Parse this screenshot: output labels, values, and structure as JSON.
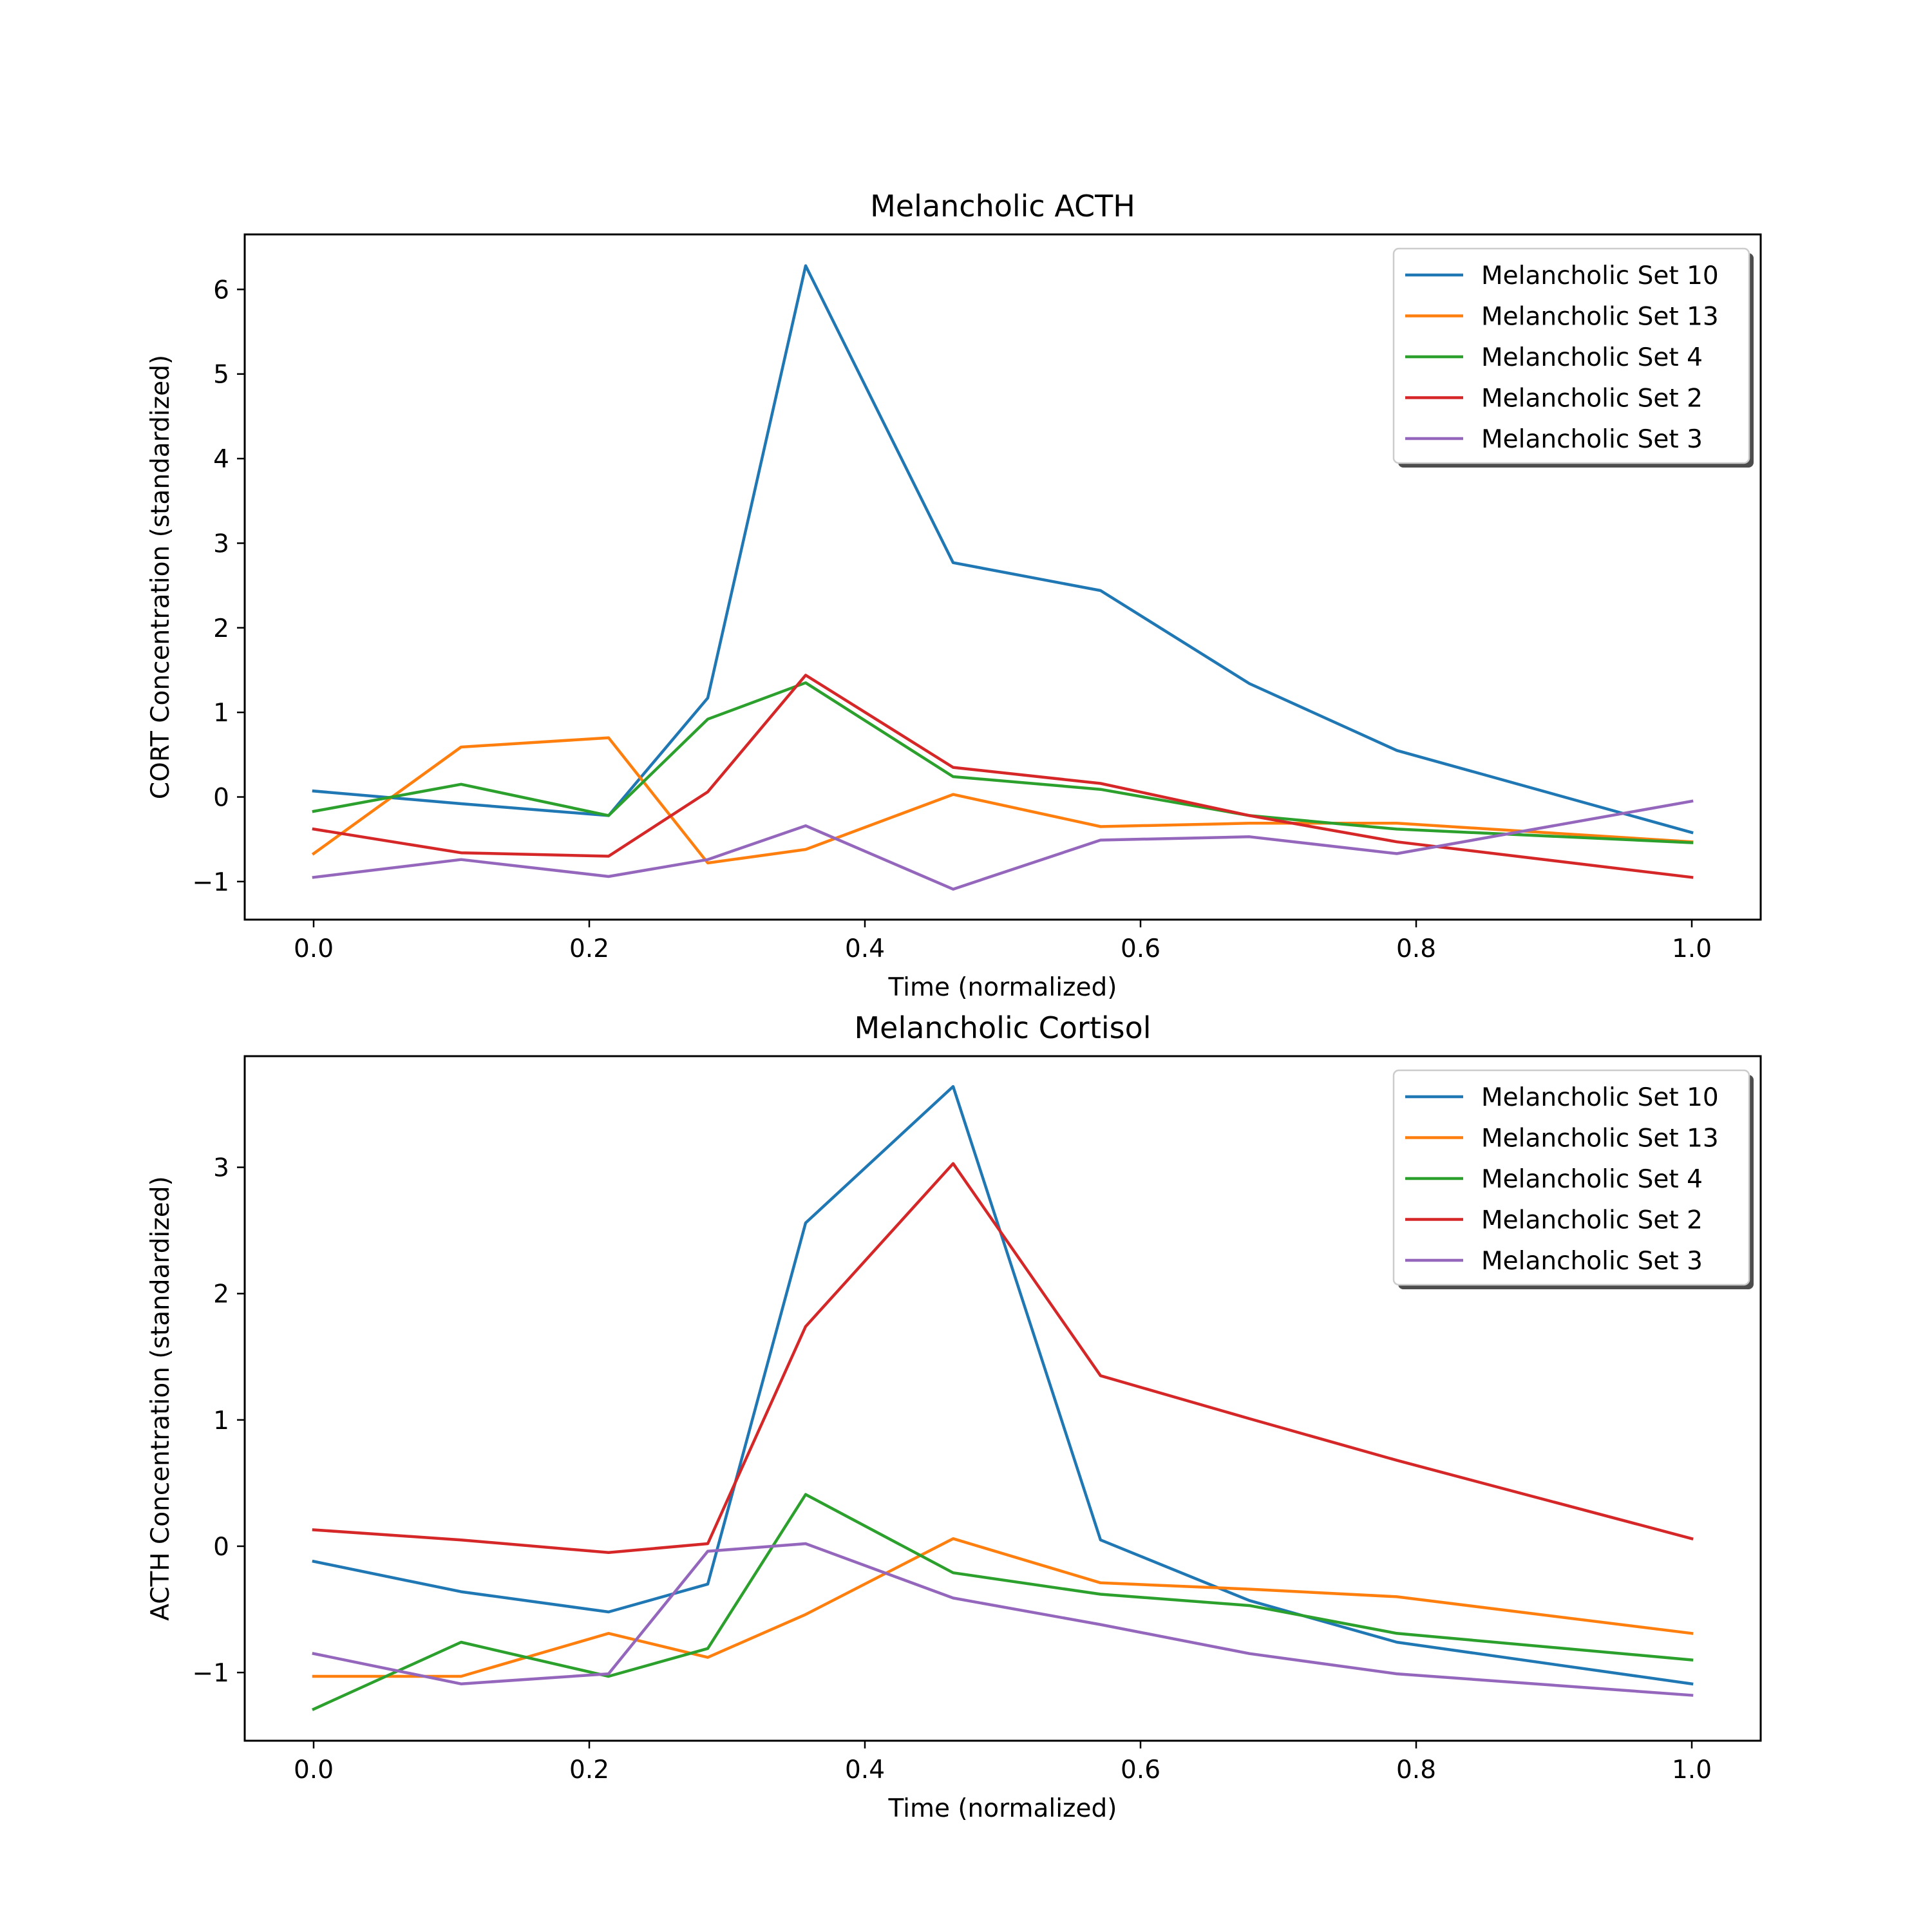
{
  "chart_data": [
    {
      "type": "line",
      "title": "Melancholic ACTH",
      "xlabel": "Time (normalized)",
      "ylabel": "CORT Concentration (standardized)",
      "xlim": [
        -0.05,
        1.05
      ],
      "ylim": [
        -1.45,
        6.65
      ],
      "xticks": [
        0.0,
        0.2,
        0.4,
        0.6,
        0.8,
        1.0
      ],
      "xtick_labels": [
        "0.0",
        "0.2",
        "0.4",
        "0.6",
        "0.8",
        "1.0"
      ],
      "yticks": [
        -1,
        0,
        1,
        2,
        3,
        4,
        5,
        6
      ],
      "ytick_labels": [
        "−1",
        "0",
        "1",
        "2",
        "3",
        "4",
        "5",
        "6"
      ],
      "grid": false,
      "legend_position": "top-right",
      "x": [
        0.0,
        0.107,
        0.214,
        0.286,
        0.357,
        0.464,
        0.571,
        0.679,
        0.786,
        1.0
      ],
      "series": [
        {
          "name": "Melancholic Set 10",
          "color": "#1f77b4",
          "values": [
            0.07,
            -0.08,
            -0.22,
            1.17,
            6.28,
            2.77,
            2.44,
            1.34,
            0.55,
            -0.42
          ]
        },
        {
          "name": "Melancholic Set 13",
          "color": "#ff7f0e",
          "values": [
            -0.67,
            0.59,
            0.7,
            -0.78,
            -0.62,
            0.03,
            -0.35,
            -0.31,
            -0.31,
            -0.53
          ]
        },
        {
          "name": "Melancholic Set 4",
          "color": "#2ca02c",
          "values": [
            -0.17,
            0.15,
            -0.22,
            0.92,
            1.35,
            0.24,
            0.09,
            -0.22,
            -0.38,
            -0.54
          ]
        },
        {
          "name": "Melancholic Set 2",
          "color": "#d62728",
          "values": [
            -0.38,
            -0.66,
            -0.7,
            0.06,
            1.44,
            0.35,
            0.16,
            -0.22,
            -0.53,
            -0.95
          ]
        },
        {
          "name": "Melancholic Set 3",
          "color": "#9467bd",
          "values": [
            -0.95,
            -0.74,
            -0.94,
            -0.74,
            -0.34,
            -1.09,
            -0.51,
            -0.47,
            -0.67,
            -0.05
          ]
        }
      ]
    },
    {
      "type": "line",
      "title": "Melancholic Cortisol",
      "xlabel": "Time (normalized)",
      "ylabel": "ACTH Concentration (standardized)",
      "xlim": [
        -0.05,
        1.05
      ],
      "ylim": [
        -1.54,
        3.88
      ],
      "xticks": [
        0.0,
        0.2,
        0.4,
        0.6,
        0.8,
        1.0
      ],
      "xtick_labels": [
        "0.0",
        "0.2",
        "0.4",
        "0.6",
        "0.8",
        "1.0"
      ],
      "yticks": [
        -1,
        0,
        1,
        2,
        3
      ],
      "ytick_labels": [
        "−1",
        "0",
        "1",
        "2",
        "3"
      ],
      "grid": false,
      "legend_position": "top-right",
      "x": [
        0.0,
        0.107,
        0.214,
        0.286,
        0.357,
        0.464,
        0.571,
        0.679,
        0.786,
        1.0
      ],
      "series": [
        {
          "name": "Melancholic Set 10",
          "color": "#1f77b4",
          "values": [
            -0.12,
            -0.36,
            -0.52,
            -0.3,
            2.56,
            3.64,
            0.05,
            -0.43,
            -0.76,
            -1.09
          ]
        },
        {
          "name": "Melancholic Set 13",
          "color": "#ff7f0e",
          "values": [
            -1.03,
            -1.03,
            -0.69,
            -0.88,
            -0.54,
            0.06,
            -0.29,
            -0.34,
            -0.4,
            -0.69
          ]
        },
        {
          "name": "Melancholic Set 4",
          "color": "#2ca02c",
          "values": [
            -1.29,
            -0.76,
            -1.03,
            -0.81,
            0.41,
            -0.21,
            -0.38,
            -0.47,
            -0.69,
            -0.9
          ]
        },
        {
          "name": "Melancholic Set 2",
          "color": "#d62728",
          "values": [
            0.13,
            0.05,
            -0.05,
            0.02,
            1.74,
            3.03,
            1.35,
            1.01,
            0.68,
            0.06
          ]
        },
        {
          "name": "Melancholic Set 3",
          "color": "#9467bd",
          "values": [
            -0.85,
            -1.09,
            -1.01,
            -0.04,
            0.02,
            -0.41,
            -0.62,
            -0.85,
            -1.01,
            -1.18
          ]
        }
      ]
    }
  ]
}
